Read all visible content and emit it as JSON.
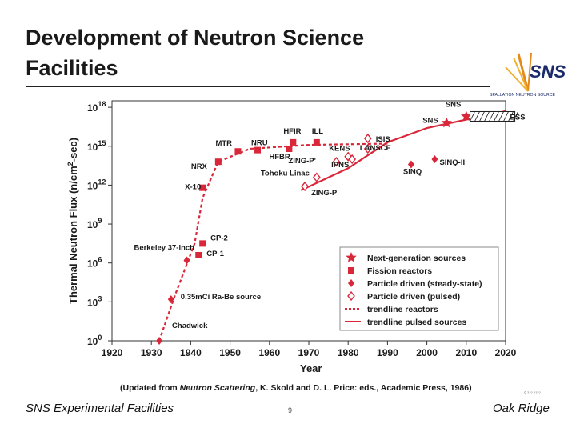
{
  "slide": {
    "title_line1": "Development of Neutron Science",
    "title_line2": "Facilities",
    "footer_left": "SNS Experimental Facilities",
    "footer_center": "9",
    "footer_right": "Oak Ridge",
    "logo_text": "SNS",
    "logo_subtext": "SPALLATION NEUTRON SOURCE",
    "copyright": "© ??? ????"
  },
  "chart_data": {
    "type": "scatter",
    "xlabel": "Year",
    "ylabel": "Thermal Neutron Flux (n/cm²-sec)",
    "ylabel_base": "Thermal Neutron Flux (n/cm",
    "ylabel_sup": "2",
    "ylabel_end": "-sec)",
    "xlim": [
      1920,
      2020
    ],
    "ylim": [
      0,
      18.5
    ],
    "x_ticks": [
      1920,
      1930,
      1940,
      1950,
      1960,
      1970,
      1980,
      1990,
      2000,
      2010,
      2020
    ],
    "x_tick_labels": [
      "1920",
      "1930",
      "1940",
      "1950",
      "1960",
      "1970",
      "1980",
      "1990",
      "2000",
      "2010",
      "2020"
    ],
    "y_ticks": [
      0,
      3,
      6,
      9,
      12,
      15,
      18
    ],
    "y_tick_base": "10",
    "y_tick_exps": [
      "0",
      "3",
      "6",
      "9",
      "12",
      "15",
      "18"
    ],
    "caption_prefix": "(Updated from ",
    "caption_italic": "Neutron Scattering",
    "caption_suffix": ", K. Skold and D. L. Price: eds., Academic Press, 1986)",
    "colors": {
      "series": "#d9273a",
      "label": "#1a1a1a"
    },
    "legend": {
      "position": "lower-right",
      "entries": [
        {
          "symbol": "star",
          "label": "Next-generation sources"
        },
        {
          "symbol": "square",
          "label": "Fission reactors"
        },
        {
          "symbol": "diamond",
          "label": "Particle driven (steady-state)"
        },
        {
          "symbol": "diamond-open",
          "label": "Particle driven (pulsed)"
        },
        {
          "symbol": "dashed-line",
          "label": "trendline reactors"
        },
        {
          "symbol": "solid-line",
          "label": "trendline pulsed sources"
        }
      ]
    },
    "points": [
      {
        "name": "Chadwick",
        "x": 1932,
        "y": 0,
        "symbol": "diamond",
        "label": "Chadwick"
      },
      {
        "name": "Ra-Be",
        "x": 1935,
        "y": 3.2,
        "symbol": "diamond",
        "label": "0.35mCi Ra-Be source"
      },
      {
        "name": "Berkeley",
        "x": 1939,
        "y": 6.2,
        "symbol": "diamond",
        "label": "Berkeley 37-inch"
      },
      {
        "name": "CP-1",
        "x": 1942,
        "y": 6.6,
        "symbol": "square",
        "label": "CP-1"
      },
      {
        "name": "CP-2",
        "x": 1943,
        "y": 7.5,
        "symbol": "square",
        "label": "CP-2"
      },
      {
        "name": "X-10",
        "x": 1943,
        "y": 11.8,
        "symbol": "square",
        "label": "X-10"
      },
      {
        "name": "NRX",
        "x": 1947,
        "y": 13.8,
        "symbol": "square",
        "label": "NRX"
      },
      {
        "name": "MTR",
        "x": 1952,
        "y": 14.6,
        "symbol": "square",
        "label": "MTR"
      },
      {
        "name": "NRU",
        "x": 1957,
        "y": 14.7,
        "symbol": "square",
        "label": "NRU"
      },
      {
        "name": "HFBR",
        "x": 1965,
        "y": 14.8,
        "symbol": "square",
        "label": "HFBR"
      },
      {
        "name": "HFIR",
        "x": 1966,
        "y": 15.3,
        "symbol": "square",
        "label": "HFIR"
      },
      {
        "name": "ILL",
        "x": 1972,
        "y": 15.3,
        "symbol": "square",
        "label": "ILL"
      },
      {
        "name": "ZING-P",
        "x": 1969,
        "y": 11.9,
        "symbol": "diamond-open",
        "label": "ZING-P"
      },
      {
        "name": "Tohoku Linac",
        "x": 1972,
        "y": 12.6,
        "symbol": "diamond-open",
        "label": "Tohoku Linac"
      },
      {
        "name": "ZING-P'",
        "x": 1977,
        "y": 13.8,
        "symbol": "diamond-open",
        "label": "ZING-P'"
      },
      {
        "name": "KENS",
        "x": 1980,
        "y": 14.2,
        "symbol": "diamond-open",
        "label": "KENS"
      },
      {
        "name": "IPNS",
        "x": 1981,
        "y": 14.0,
        "symbol": "diamond-open",
        "label": "IPNS"
      },
      {
        "name": "LANSCE",
        "x": 1985,
        "y": 14.8,
        "symbol": "diamond-open",
        "label": "LANSCE"
      },
      {
        "name": "ISIS",
        "x": 1985,
        "y": 15.6,
        "symbol": "diamond-open",
        "label": "ISIS"
      },
      {
        "name": "SINQ",
        "x": 1996,
        "y": 13.6,
        "symbol": "diamond",
        "label": "SINQ"
      },
      {
        "name": "SINQ-II",
        "x": 2002,
        "y": 14.0,
        "symbol": "diamond",
        "label": "SINQ-II"
      },
      {
        "name": "SNS",
        "x": 2005,
        "y": 16.8,
        "symbol": "star",
        "label": "SNS"
      },
      {
        "name": "SNS upgrade",
        "x": 2010,
        "y": 17.3,
        "symbol": "star",
        "label": "SNS"
      },
      {
        "name": "ESS",
        "x": 2013,
        "y": 17.3,
        "symbol": "hatched-box",
        "label": "ESS"
      }
    ],
    "trendline_reactors": [
      {
        "x": 1932,
        "y": 0
      },
      {
        "x": 1936,
        "y": 3.5
      },
      {
        "x": 1941,
        "y": 7.5
      },
      {
        "x": 1943,
        "y": 11.0
      },
      {
        "x": 1947,
        "y": 13.8
      },
      {
        "x": 1955,
        "y": 14.8
      },
      {
        "x": 1970,
        "y": 15.1
      },
      {
        "x": 1990,
        "y": 15.2
      }
    ],
    "trendline_pulsed": [
      {
        "x": 1968,
        "y": 11.6
      },
      {
        "x": 1980,
        "y": 13.3
      },
      {
        "x": 1990,
        "y": 15.3
      },
      {
        "x": 2000,
        "y": 16.4
      },
      {
        "x": 2020,
        "y": 17.7
      }
    ]
  }
}
